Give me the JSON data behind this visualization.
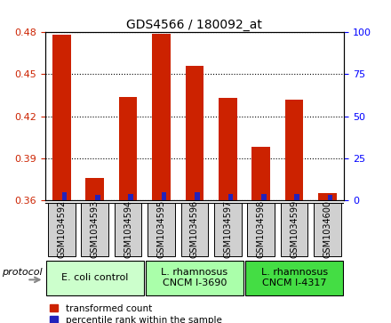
{
  "title": "GDS4566 / 180092_at",
  "samples": [
    "GSM1034592",
    "GSM1034593",
    "GSM1034594",
    "GSM1034595",
    "GSM1034596",
    "GSM1034597",
    "GSM1034598",
    "GSM1034599",
    "GSM1034600"
  ],
  "transformed_count": [
    0.478,
    0.376,
    0.434,
    0.479,
    0.456,
    0.433,
    0.398,
    0.432,
    0.365
  ],
  "percentile_rank_pct": [
    5,
    3,
    4,
    5,
    5,
    4,
    4,
    4,
    3
  ],
  "ylim_left": [
    0.36,
    0.48
  ],
  "ylim_right": [
    0,
    100
  ],
  "yticks_left": [
    0.36,
    0.39,
    0.42,
    0.45,
    0.48
  ],
  "yticks_right": [
    0,
    25,
    50,
    75,
    100
  ],
  "bar_width": 0.55,
  "red_color": "#cc2200",
  "blue_color": "#2222bb",
  "group_labels": [
    "E. coli control",
    "L. rhamnosus\nCNCM I-3690",
    "L. rhamnosus\nCNCM I-4317"
  ],
  "group_starts": [
    0,
    3,
    6
  ],
  "group_ends": [
    3,
    6,
    9
  ],
  "group_colors": [
    "#ccffcc",
    "#aaffaa",
    "#44dd44"
  ],
  "protocol_label": "protocol",
  "legend_red": "transformed count",
  "legend_blue": "percentile rank within the sample",
  "xtick_bg": "#d0d0d0",
  "plot_bg": "#ffffff",
  "title_fontsize": 10,
  "tick_fontsize": 8,
  "label_fontsize": 7,
  "proto_fontsize": 8,
  "legend_fontsize": 7.5
}
